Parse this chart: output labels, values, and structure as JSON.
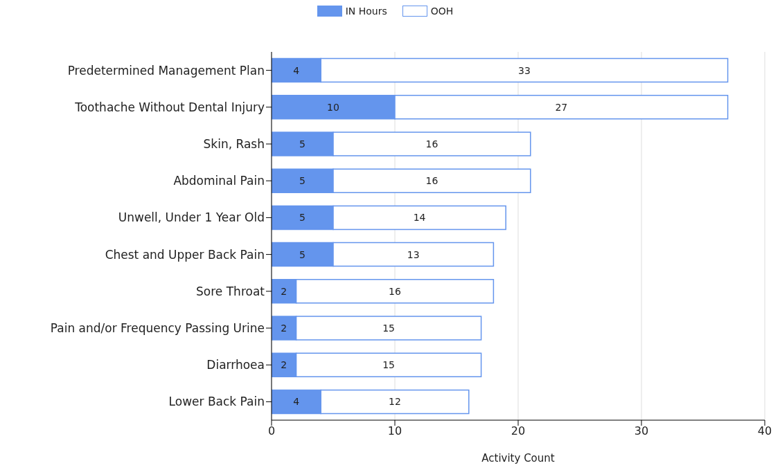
{
  "chart_data": {
    "type": "bar",
    "orientation": "horizontal",
    "stacked": true,
    "xlabel": "Activity Count",
    "categories": [
      "Predetermined Management Plan",
      "Toothache Without Dental Injury",
      "Skin, Rash",
      "Abdominal Pain",
      "Unwell, Under 1 Year Old",
      "Chest and Upper Back Pain",
      "Sore Throat",
      "Pain and/or Frequency Passing Urine",
      "Diarrhoea",
      "Lower Back Pain"
    ],
    "series": [
      {
        "name": "IN Hours",
        "color": "#6495ed",
        "values": [
          4,
          10,
          5,
          5,
          5,
          5,
          2,
          2,
          2,
          4
        ]
      },
      {
        "name": "OOH",
        "color": "#ffffff",
        "values": [
          33,
          27,
          16,
          16,
          14,
          13,
          16,
          15,
          15,
          12
        ]
      }
    ],
    "xlim": [
      0,
      40
    ],
    "xticks": [
      0,
      10,
      20,
      30,
      40
    ],
    "grid": "x",
    "legend": "top",
    "data_labels": true
  }
}
